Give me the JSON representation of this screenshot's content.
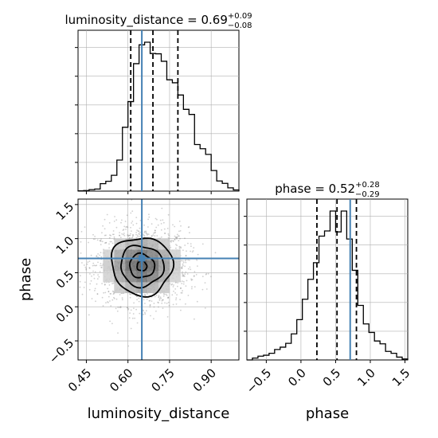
{
  "chart_data": [
    {
      "type": "histogram",
      "panel": "luminosity_distance marginal",
      "title_param": "luminosity_distance",
      "title_median": "0.69",
      "title_plus": "+0.09",
      "title_minus": "−0.08",
      "bin_edges": [
        0.42,
        0.44,
        0.46,
        0.48,
        0.5,
        0.52,
        0.54,
        0.56,
        0.58,
        0.6,
        0.62,
        0.64,
        0.66,
        0.68,
        0.7,
        0.72,
        0.74,
        0.76,
        0.78,
        0.8,
        0.82,
        0.84,
        0.86,
        0.88,
        0.9,
        0.92,
        0.94,
        0.96,
        0.98,
        1.0
      ],
      "counts": [
        0.1,
        0.2,
        0.5,
        0.7,
        2.5,
        3.3,
        5.3,
        10.4,
        21.4,
        30.0,
        42.7,
        49.0,
        49.9,
        46.1,
        46.0,
        43.5,
        37.3,
        36.3,
        32.2,
        27.4,
        25.7,
        15.6,
        14.2,
        12.3,
        6.9,
        3.4,
        2.6,
        1.1,
        0.4
      ],
      "quantile_lines": [
        0.61,
        0.69,
        0.78
      ],
      "truth": 0.65,
      "xlim": [
        0.42,
        1.0
      ]
    },
    {
      "type": "scatter",
      "panel": "phase vs luminosity_distance 2D density",
      "xlabel": "luminosity_distance",
      "ylabel": "phase",
      "xticks": [
        "0.45",
        "0.60",
        "0.75",
        "0.90"
      ],
      "yticks": [
        "−0.5",
        "0.0",
        "0.5",
        "1.0",
        "1.5"
      ],
      "xlim": [
        0.42,
        1.0
      ],
      "ylim": [
        -0.78,
        1.58
      ],
      "truth": [
        0.65,
        0.71
      ],
      "contour_levels": 4,
      "density_center": [
        0.65,
        0.6
      ]
    },
    {
      "type": "histogram",
      "panel": "phase marginal",
      "title_param": "phase",
      "title_median": "0.52",
      "title_plus": "+0.28",
      "title_minus": "−0.29",
      "bin_edges": [
        -0.78,
        -0.7,
        -0.62,
        -0.54,
        -0.46,
        -0.38,
        -0.3,
        -0.22,
        -0.14,
        -0.06,
        0.02,
        0.1,
        0.18,
        0.26,
        0.34,
        0.42,
        0.5,
        0.58,
        0.66,
        0.74,
        0.82,
        0.9,
        0.98,
        1.06,
        1.14,
        1.22,
        1.3,
        1.38,
        1.46,
        1.54
      ],
      "counts": [
        0.0,
        0.4,
        0.8,
        1.0,
        1.4,
        2.2,
        2.7,
        3.5,
        5.5,
        8.5,
        12.8,
        17.0,
        20.5,
        26.1,
        27.2,
        31.4,
        27.0,
        31.4,
        25.5,
        18.9,
        11.5,
        7.6,
        5.8,
        4.0,
        3.4,
        1.8,
        1.4,
        0.6,
        0.2
      ],
      "quantile_lines": [
        0.23,
        0.52,
        0.8
      ],
      "truth": 0.71,
      "xlim": [
        -0.78,
        1.54
      ],
      "xlabel": "phase",
      "xticks": [
        "−0.5",
        "0.0",
        "0.5",
        "1.0",
        "1.5"
      ]
    }
  ],
  "colors": {
    "step_line": "#000000",
    "truth_line": "#4682b4",
    "grid": "#b0b0b0",
    "points": "#777777"
  }
}
